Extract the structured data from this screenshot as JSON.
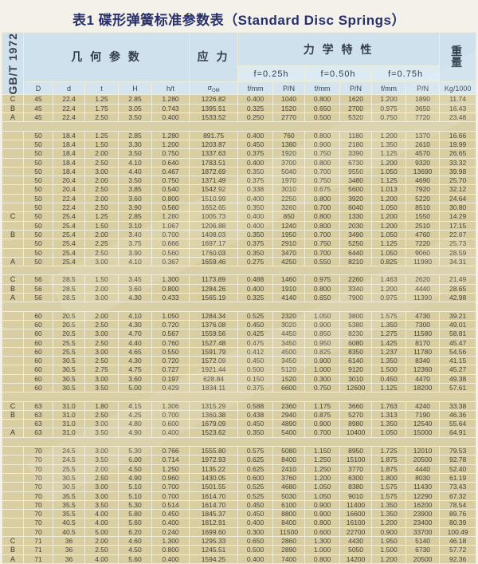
{
  "title": "表1 碟形弹簧标准参数表（Standard Disc Springs）",
  "standard_label": "GB/T 1972",
  "header": {
    "geometry_group": "几 何 参 数",
    "stress_group": "应 力",
    "mechanical_group": "力 学 特 性",
    "weight_lines": [
      "重",
      "量"
    ],
    "deflection_labels": [
      "f=0.25h",
      "f=0.50h",
      "f=0.75h"
    ],
    "sigma": "σ",
    "sigma_sub": "OM",
    "columns": [
      "D",
      "d",
      "t",
      "H",
      "h/t",
      "",
      "f/mm",
      "P/N",
      "f/mm",
      "P/N",
      "f/mm",
      "P/N",
      "Kg/1000"
    ]
  },
  "rows": [
    {
      "c": "C",
      "v": [
        "45",
        "22.4",
        "1.25",
        "2.85",
        "1.280",
        "1226.82",
        "0.400",
        "1040",
        "0.800",
        "1620",
        "1.200",
        "1890",
        "11.74"
      ]
    },
    {
      "c": "B",
      "v": [
        "45",
        "22.4",
        "1.75",
        "3.05",
        "0.743",
        "1395.51",
        "0.325",
        "1520",
        "0.650",
        "2700",
        "0.975",
        "3650",
        "16.43"
      ]
    },
    {
      "c": "A",
      "v": [
        "45",
        "22.4",
        "2.50",
        "3.50",
        "0.400",
        "1533.52",
        "0.250",
        "2770",
        "0.500",
        "5320",
        "0.750",
        "7720",
        "23.48"
      ]
    },
    {
      "gap": true
    },
    {
      "v": [
        "50",
        "18.4",
        "1.25",
        "2.85",
        "1.280",
        "891.75",
        "0.400",
        "760",
        "0.800",
        "1180",
        "1.200",
        "1370",
        "16.66"
      ]
    },
    {
      "v": [
        "50",
        "18.4",
        "1.50",
        "3.30",
        "1.200",
        "1203.87",
        "0.450",
        "1380",
        "0.900",
        "2180",
        "1.350",
        "2610",
        "19.99"
      ]
    },
    {
      "v": [
        "50",
        "18.4",
        "2.00",
        "3.50",
        "0.750",
        "1337.63",
        "0.375",
        "1920",
        "0.750",
        "3390",
        "1.125",
        "4570",
        "26.65"
      ]
    },
    {
      "v": [
        "50",
        "18.4",
        "2.50",
        "4.10",
        "0.640",
        "1783.51",
        "0.400",
        "3700",
        "0.800",
        "6730",
        "1.200",
        "9320",
        "33.32"
      ]
    },
    {
      "v": [
        "50",
        "18.4",
        "3.00",
        "4.40",
        "0.467",
        "1872.69",
        "0.350",
        "5040",
        "0.700",
        "9550",
        "1.050",
        "13690",
        "39.98"
      ]
    },
    {
      "v": [
        "50",
        "20.4",
        "2.00",
        "3.50",
        "0.750",
        "1371.49",
        "0.375",
        "1970",
        "0.750",
        "3480",
        "1.125",
        "4690",
        "25.70"
      ]
    },
    {
      "v": [
        "50",
        "20.4",
        "2.50",
        "3.85",
        "0.540",
        "1542.92",
        "0.338",
        "3010",
        "0.675",
        "5600",
        "1.013",
        "7920",
        "32.12"
      ]
    },
    {
      "v": [
        "50",
        "22.4",
        "2.00",
        "3.60",
        "0.800",
        "1510.99",
        "0.400",
        "2250",
        "0.800",
        "3920",
        "1.200",
        "5220",
        "24.64"
      ]
    },
    {
      "v": [
        "50",
        "22.4",
        "2.50",
        "3.90",
        "0.560",
        "1652.65",
        "0.350",
        "3260",
        "0.700",
        "6040",
        "1.050",
        "8510",
        "30.80"
      ]
    },
    {
      "c": "C",
      "v": [
        "50",
        "25.4",
        "1.25",
        "2.85",
        "1.280",
        "1005.73",
        "0.400",
        "850",
        "0.800",
        "1330",
        "1.200",
        "1550",
        "14.29"
      ]
    },
    {
      "v": [
        "50",
        "25.4",
        "1.50",
        "3.10",
        "1.067",
        "1206.88",
        "0.400",
        "1240",
        "0.800",
        "2030",
        "1.200",
        "2510",
        "17.15"
      ]
    },
    {
      "c": "B",
      "v": [
        "50",
        "25.4",
        "2.00",
        "3.40",
        "0.700",
        "1408.03",
        "0.350",
        "1950",
        "0.700",
        "3490",
        "1.050",
        "4760",
        "22.87"
      ]
    },
    {
      "v": [
        "50",
        "25.4",
        "2.25",
        "3.75",
        "0.666",
        "1697.17",
        "0.375",
        "2910",
        "0.750",
        "5250",
        "1.125",
        "7220",
        "25.73"
      ]
    },
    {
      "v": [
        "50",
        "25.4",
        "2.50",
        "3.90",
        "0.560",
        "1760.03",
        "0.350",
        "3470",
        "0.700",
        "6440",
        "1.050",
        "9060",
        "28.59"
      ]
    },
    {
      "c": "A",
      "v": [
        "50",
        "25.4",
        "3.00",
        "4.10",
        "0.367",
        "1659.46",
        "0.275",
        "4250",
        "0.550",
        "8210",
        "0.825",
        "11980",
        "34.31"
      ]
    },
    {
      "gap": true
    },
    {
      "c": "C",
      "v": [
        "56",
        "28.5",
        "1.50",
        "3.45",
        "1.300",
        "1173.89",
        "0.488",
        "1460",
        "0.975",
        "2260",
        "1.463",
        "2620",
        "21.49"
      ]
    },
    {
      "c": "B",
      "v": [
        "56",
        "28.5",
        "2.00",
        "3.60",
        "0.800",
        "1284.26",
        "0.400",
        "1910",
        "0.800",
        "3340",
        "1.200",
        "4440",
        "28.65"
      ]
    },
    {
      "c": "A",
      "v": [
        "56",
        "28.5",
        "3.00",
        "4.30",
        "0.433",
        "1565.19",
        "0.325",
        "4140",
        "0.650",
        "7900",
        "0.975",
        "11390",
        "42.98"
      ]
    },
    {
      "gap": true
    },
    {
      "v": [
        "60",
        "20.5",
        "2.00",
        "4.10",
        "1.050",
        "1284.34",
        "0.525",
        "2320",
        "1.050",
        "3800",
        "1.575",
        "4730",
        "39.21"
      ]
    },
    {
      "v": [
        "60",
        "20.5",
        "2.50",
        "4.30",
        "0.720",
        "1376.08",
        "0.450",
        "3020",
        "0.900",
        "5380",
        "1.350",
        "7300",
        "49.01"
      ]
    },
    {
      "v": [
        "60",
        "20.5",
        "3.00",
        "4.70",
        "0.567",
        "1559.56",
        "0.425",
        "4450",
        "0.850",
        "8230",
        "1.275",
        "11580",
        "58.81"
      ]
    },
    {
      "v": [
        "60",
        "25.5",
        "2.50",
        "4.40",
        "0.760",
        "1527.48",
        "0.475",
        "3450",
        "0.950",
        "6080",
        "1.425",
        "8170",
        "45.47"
      ]
    },
    {
      "v": [
        "60",
        "25.5",
        "3.00",
        "4.65",
        "0.550",
        "1591.79",
        "0.412",
        "4500",
        "0.825",
        "8350",
        "1.237",
        "11780",
        "54.56"
      ]
    },
    {
      "v": [
        "60",
        "30.5",
        "2.50",
        "4.30",
        "0.720",
        "1572.09",
        "0.450",
        "3450",
        "0.900",
        "6140",
        "1.350",
        "8340",
        "41.15"
      ]
    },
    {
      "v": [
        "60",
        "30.5",
        "2.75",
        "4.75",
        "0.727",
        "1921.44",
        "0.500",
        "5120",
        "1.000",
        "9120",
        "1.500",
        "12360",
        "45.27"
      ]
    },
    {
      "v": [
        "60",
        "30.5",
        "3.00",
        "3.60",
        "0.197",
        "628.84",
        "0.150",
        "1520",
        "0.300",
        "3010",
        "0.450",
        "4470",
        "49.38"
      ]
    },
    {
      "v": [
        "60",
        "30.5",
        "3.50",
        "5.00",
        "0.429",
        "1834.11",
        "0.375",
        "6600",
        "0.750",
        "12600",
        "1.125",
        "18200",
        "57.61"
      ]
    },
    {
      "gap": true
    },
    {
      "c": "C",
      "v": [
        "63",
        "31.0",
        "1.80",
        "4.15",
        "1.306",
        "1315.29",
        "0.588",
        "2360",
        "1.175",
        "3660",
        "1.763",
        "4240",
        "33.38"
      ]
    },
    {
      "c": "B",
      "v": [
        "63",
        "31.0",
        "2.50",
        "4.25",
        "0.700",
        "1360.38",
        "0.438",
        "2940",
        "0.875",
        "5270",
        "1.313",
        "7190",
        "46.36"
      ]
    },
    {
      "v": [
        "63",
        "31.0",
        "3.00",
        "4.80",
        "0.600",
        "1679.09",
        "0.450",
        "4890",
        "0.900",
        "8980",
        "1.350",
        "12540",
        "55.64"
      ]
    },
    {
      "c": "A",
      "v": [
        "63",
        "31.0",
        "3.50",
        "4.90",
        "0.400",
        "1523.62",
        "0.350",
        "5400",
        "0.700",
        "10400",
        "1.050",
        "15000",
        "64.91"
      ]
    },
    {
      "gap": true
    },
    {
      "v": [
        "70",
        "24.5",
        "3.00",
        "5.30",
        "0.766",
        "1555.80",
        "0.575",
        "5080",
        "1.150",
        "8950",
        "1.725",
        "12010",
        "79.53"
      ]
    },
    {
      "v": [
        "70",
        "24.5",
        "3.50",
        "6.00",
        "0.714",
        "1972.93",
        "0.625",
        "8400",
        "1.250",
        "15100",
        "1.875",
        "20500",
        "92.78"
      ]
    },
    {
      "v": [
        "70",
        "25.5",
        "2.00",
        "4.50",
        "1.250",
        "1135.22",
        "0.625",
        "2410",
        "1.250",
        "3770",
        "1.875",
        "4440",
        "52.40"
      ]
    },
    {
      "v": [
        "70",
        "30.5",
        "2.50",
        "4.90",
        "0.960",
        "1430.05",
        "0.600",
        "3760",
        "1.200",
        "6300",
        "1.800",
        "8030",
        "61.19"
      ]
    },
    {
      "v": [
        "70",
        "30.5",
        "3.00",
        "5.10",
        "0.700",
        "1501.55",
        "0.525",
        "4680",
        "1.050",
        "8380",
        "1.575",
        "11430",
        "73.43"
      ]
    },
    {
      "v": [
        "70",
        "35.5",
        "3.00",
        "5.10",
        "0.700",
        "1614.70",
        "0.525",
        "5030",
        "1.050",
        "9010",
        "1.575",
        "12290",
        "67.32"
      ]
    },
    {
      "v": [
        "70",
        "35.5",
        "3.50",
        "5.30",
        "0.514",
        "1614.70",
        "0.450",
        "6100",
        "0.900",
        "11400",
        "1.350",
        "16200",
        "78.54"
      ]
    },
    {
      "v": [
        "70",
        "35.5",
        "4.00",
        "5.80",
        "0.450",
        "1845.37",
        "0.450",
        "8800",
        "0.900",
        "16600",
        "1.350",
        "23900",
        "89.76"
      ]
    },
    {
      "v": [
        "70",
        "40.5",
        "4.00",
        "5.60",
        "0.400",
        "1812.91",
        "0.400",
        "8400",
        "0.800",
        "16100",
        "1.200",
        "23400",
        "80.39"
      ]
    },
    {
      "v": [
        "70",
        "40.5",
        "5.00",
        "6.20",
        "0.240",
        "1699.60",
        "0.300",
        "11500",
        "0.600",
        "22700",
        "0.900",
        "33700",
        "100.49"
      ]
    },
    {
      "c": "C",
      "v": [
        "71",
        "36",
        "2.00",
        "4.60",
        "1.300",
        "1295.33",
        "0.650",
        "2860",
        "1.300",
        "4430",
        "1.950",
        "5140",
        "46.18"
      ]
    },
    {
      "c": "B",
      "v": [
        "71",
        "36",
        "2.50",
        "4.50",
        "0.800",
        "1245.51",
        "0.500",
        "2890",
        "1.000",
        "5050",
        "1.500",
        "6730",
        "57.72"
      ]
    },
    {
      "c": "A",
      "v": [
        "71",
        "36",
        "4.00",
        "5.60",
        "0.400",
        "1594.25",
        "0.400",
        "7400",
        "0.800",
        "14200",
        "1.200",
        "20500",
        "92.36"
      ]
    }
  ],
  "colors": {
    "title_text": "#273069",
    "header_blue": "#cfe1ed",
    "data_tan": "#d8cea2",
    "grid": "#f0ecda",
    "data_text": "#46423a"
  }
}
